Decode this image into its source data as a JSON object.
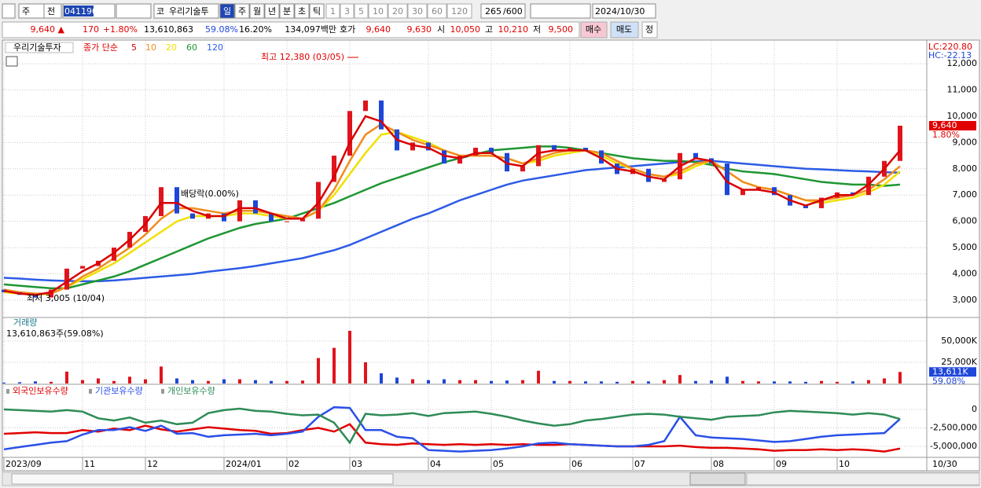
{
  "toolbar": {
    "type_label": "주",
    "prev_label": "전",
    "code": "041190",
    "market": "코",
    "name": "우리기술투",
    "periods": [
      "일",
      "주",
      "월",
      "년",
      "분",
      "초",
      "틱"
    ],
    "intervals": [
      "1",
      "3",
      "5",
      "10",
      "20",
      "30",
      "60",
      "120"
    ],
    "count": "265",
    "max_count": "/600",
    "date": "2024/10/30"
  },
  "quote": {
    "price": "9,640 ▲",
    "change": "170",
    "change_pct": "+1.80%",
    "volume": "13,610,863",
    "volume_ratio": "59.08%",
    "turnover": "16.20%",
    "amount": "134,097백만",
    "bid_ask_label": "호가",
    "ask": "9,640",
    "bid": "9,630",
    "open_label": "시",
    "open": "10,050",
    "high_label": "고",
    "high": "10,210",
    "low_label": "저",
    "low": "9,500",
    "buy": "매수",
    "sell": "매도",
    "correct": "정"
  },
  "chart_data": [
    {
      "type": "candlestick",
      "title": "우리기술투자",
      "legend_title": "종가 단순",
      "categories": [
        "2023/09",
        null,
        null,
        null,
        null,
        "11",
        null,
        null,
        null,
        "12",
        null,
        null,
        null,
        null,
        "2024/01",
        null,
        null,
        null,
        "02",
        null,
        null,
        null,
        "03",
        null,
        null,
        null,
        null,
        "04",
        null,
        null,
        null,
        "05",
        null,
        null,
        null,
        null,
        "06",
        null,
        null,
        null,
        "07",
        null,
        null,
        null,
        null,
        "08",
        null,
        null,
        null,
        "09",
        null,
        null,
        null,
        "10",
        null,
        null,
        null,
        null
      ],
      "open": [
        3400,
        3300,
        3200,
        3100,
        3400,
        4200,
        4300,
        4500,
        5000,
        5600,
        6200,
        7300,
        6300,
        6100,
        6300,
        6000,
        6800,
        6300,
        6000,
        6000,
        6100,
        7500,
        8500,
        10200,
        10600,
        9500,
        8700,
        9000,
        8700,
        8200,
        8500,
        8800,
        8600,
        7900,
        8100,
        8900,
        8700,
        8800,
        8700,
        8200,
        7800,
        8000,
        7500,
        7600,
        8600,
        8400,
        8200,
        7000,
        7200,
        7300,
        7000,
        6600,
        6500,
        6900,
        7100,
        7000,
        7700,
        8300
      ],
      "close": [
        3300,
        3200,
        3100,
        3400,
        4200,
        4300,
        4500,
        5000,
        5600,
        6200,
        7300,
        6300,
        6100,
        6300,
        6000,
        6800,
        6300,
        6000,
        6000,
        6100,
        7500,
        8500,
        10200,
        10600,
        9500,
        8700,
        9000,
        8700,
        8200,
        8500,
        8800,
        8600,
        7900,
        8100,
        8900,
        8700,
        8800,
        8700,
        8200,
        7800,
        8000,
        7500,
        7600,
        8600,
        8400,
        8200,
        7000,
        7200,
        7300,
        7000,
        6600,
        6500,
        6900,
        7100,
        7000,
        7700,
        8300,
        9640
      ],
      "up_color": "#e0141c",
      "down_color": "#1e46d8",
      "series": [
        {
          "name": "5",
          "color": "#d80000",
          "values": [
            3350,
            3250,
            3200,
            3300,
            3700,
            4100,
            4400,
            4800,
            5300,
            5900,
            6700,
            6700,
            6400,
            6200,
            6200,
            6500,
            6500,
            6300,
            6100,
            6100,
            6700,
            7700,
            9000,
            10000,
            9800,
            9100,
            8900,
            8800,
            8500,
            8400,
            8600,
            8600,
            8200,
            8100,
            8600,
            8700,
            8700,
            8700,
            8400,
            8000,
            7900,
            7700,
            7600,
            8100,
            8400,
            8300,
            7500,
            7200,
            7200,
            7100,
            6800,
            6600,
            6800,
            7000,
            7000,
            7400,
            8000,
            8700
          ]
        },
        {
          "name": "10",
          "color": "#f08c1e",
          "values": [
            3400,
            3300,
            3250,
            3250,
            3500,
            3900,
            4200,
            4600,
            5000,
            5500,
            6100,
            6500,
            6500,
            6400,
            6300,
            6400,
            6400,
            6300,
            6200,
            6100,
            6400,
            7200,
            8300,
            9300,
            9700,
            9400,
            9100,
            8900,
            8700,
            8500,
            8500,
            8500,
            8400,
            8200,
            8400,
            8600,
            8700,
            8700,
            8600,
            8300,
            8000,
            7800,
            7700,
            7900,
            8200,
            8300,
            7900,
            7500,
            7300,
            7200,
            7000,
            6800,
            6800,
            6900,
            7000,
            7200,
            7600,
            8100
          ]
        },
        {
          "name": "20",
          "color": "#f0e000",
          "values": [
            3300,
            3250,
            3200,
            3250,
            3500,
            3800,
            4100,
            4400,
            4800,
            5200,
            5600,
            6000,
            6200,
            6200,
            6200,
            6300,
            6300,
            6200,
            6100,
            6100,
            6400,
            7000,
            7800,
            8600,
            9300,
            9400,
            9200,
            9000,
            8700,
            8500,
            8500,
            8500,
            8400,
            8200,
            8300,
            8500,
            8600,
            8700,
            8500,
            8200,
            8000,
            7800,
            7700,
            7800,
            8100,
            8300,
            7900,
            7500,
            7300,
            7200,
            7000,
            6800,
            6700,
            6800,
            6900,
            7100,
            7400,
            7900
          ]
        },
        {
          "name": "60",
          "color": "#1e9632",
          "values": [
            3600,
            3550,
            3500,
            3450,
            3450,
            3600,
            3750,
            3900,
            4100,
            4350,
            4600,
            4850,
            5100,
            5350,
            5550,
            5750,
            5900,
            6000,
            6100,
            6300,
            6500,
            6700,
            6950,
            7200,
            7450,
            7650,
            7850,
            8050,
            8250,
            8400,
            8550,
            8700,
            8750,
            8800,
            8850,
            8850,
            8800,
            8700,
            8600,
            8500,
            8400,
            8350,
            8300,
            8300,
            8250,
            8150,
            8000,
            7900,
            7850,
            7800,
            7700,
            7600,
            7500,
            7450,
            7400,
            7400,
            7350,
            7400
          ]
        },
        {
          "name": "120",
          "color": "#2d5be6",
          "values": [
            3850,
            3820,
            3780,
            3750,
            3730,
            3720,
            3720,
            3750,
            3800,
            3850,
            3900,
            3950,
            4000,
            4080,
            4150,
            4220,
            4300,
            4400,
            4500,
            4600,
            4750,
            4900,
            5100,
            5350,
            5600,
            5850,
            6100,
            6300,
            6550,
            6800,
            7000,
            7200,
            7400,
            7550,
            7650,
            7750,
            7850,
            7950,
            8000,
            8050,
            8100,
            8150,
            8200,
            8250,
            8280,
            8300,
            8250,
            8200,
            8150,
            8100,
            8050,
            8000,
            7980,
            7950,
            7920,
            7900,
            7870,
            7850
          ]
        }
      ],
      "ylim": [
        2370,
        12870
      ],
      "yticks": [
        {
          "value": 3000,
          "label": "3,000"
        },
        {
          "value": 4000,
          "label": "4,000"
        },
        {
          "value": 5000,
          "label": "5,000"
        },
        {
          "value": 6000,
          "label": "6,000"
        },
        {
          "value": 7000,
          "label": "7,000"
        },
        {
          "value": 8000,
          "label": "8,000"
        },
        {
          "value": 9000,
          "label": "9,000"
        },
        {
          "value": 10000,
          "label": "10,000"
        },
        {
          "value": 11000,
          "label": "11,000"
        },
        {
          "value": 12000,
          "label": "12,000"
        }
      ],
      "grid": true,
      "annotations": {
        "high": "최고 12,380 (03/05)",
        "low": "최저 3,005 (10/04)",
        "dividend": "배당락(0.00%)"
      },
      "lc": "LC:220.80",
      "hc": "HC:-22.13",
      "last_tag": "9,640",
      "last_change": "1.80%"
    },
    {
      "type": "bar",
      "title": "거래량",
      "subtitle": "13,610,863주(59.08%)",
      "values": [
        1000,
        1500,
        2500,
        2000,
        14000,
        4000,
        6000,
        3000,
        8000,
        5000,
        20000,
        6000,
        4000,
        3000,
        5000,
        5000,
        4000,
        3000,
        3000,
        3500,
        30000,
        42000,
        62000,
        25000,
        12000,
        7000,
        5000,
        4000,
        5000,
        4000,
        4000,
        3000,
        3500,
        4000,
        15000,
        3000,
        3000,
        2500,
        2500,
        2000,
        3000,
        2500,
        4000,
        10000,
        3000,
        3500,
        8000,
        3000,
        2500,
        2500,
        2500,
        2000,
        3000,
        2000,
        2500,
        4000,
        6000,
        13611
      ],
      "ylim": [
        0,
        76850
      ],
      "yticks": [
        {
          "value": 25000,
          "label": "25,000K"
        },
        {
          "value": 50000,
          "label": "50,000K"
        }
      ],
      "grid": true,
      "last_tag": "13,611K",
      "last_pct": "59.08%"
    },
    {
      "type": "line",
      "series": [
        {
          "name": "외국인보유수량",
          "color": "#e00000",
          "values": [
            -3300000,
            -3200000,
            -3100000,
            -3200000,
            -3200000,
            -2800000,
            -3000000,
            -2600000,
            -2800000,
            -2200000,
            -2700000,
            -3000000,
            -2700000,
            -2400000,
            -2600000,
            -2800000,
            -2900000,
            -3300000,
            -3200000,
            -2800000,
            -2500000,
            -3000000,
            -2000000,
            -4500000,
            -4700000,
            -4800000,
            -4600000,
            -4700000,
            -4800000,
            -4700000,
            -4800000,
            -4700000,
            -4800000,
            -4700000,
            -4800000,
            -4800000,
            -4700000,
            -4800000,
            -4900000,
            -5000000,
            -5000000,
            -5000000,
            -5000000,
            -4900000,
            -5100000,
            -5200000,
            -5200000,
            -5300000,
            -5400000,
            -5600000,
            -5500000,
            -5500000,
            -5400000,
            -5500000,
            -5400000,
            -5500000,
            -5700000,
            -5300000
          ]
        },
        {
          "name": "기관보유수량",
          "color": "#2a50e8",
          "values": [
            -5400000,
            -5100000,
            -4800000,
            -4500000,
            -4300000,
            -3400000,
            -2800000,
            -2800000,
            -2400000,
            -2900000,
            -2200000,
            -3300000,
            -3200000,
            -3700000,
            -3500000,
            -3400000,
            -3300000,
            -3500000,
            -3300000,
            -3000000,
            -1000000,
            300000,
            200000,
            -2800000,
            -2800000,
            -3700000,
            -3900000,
            -5500000,
            -5600000,
            -5700000,
            -5600000,
            -5500000,
            -5300000,
            -5000000,
            -4600000,
            -4500000,
            -4700000,
            -4800000,
            -4900000,
            -5000000,
            -5000000,
            -4800000,
            -4300000,
            -1000000,
            -3500000,
            -3800000,
            -3900000,
            -4000000,
            -4200000,
            -4400000,
            -4300000,
            -4000000,
            -3700000,
            -3500000,
            -3400000,
            -3300000,
            -3200000,
            -1300000
          ]
        },
        {
          "name": "개인보유수량",
          "color": "#2e8b57",
          "values": [
            0,
            -100000,
            -200000,
            -300000,
            -100000,
            -300000,
            -1200000,
            -1500000,
            -1100000,
            -1800000,
            -1500000,
            -2000000,
            -1800000,
            -500000,
            -100000,
            100000,
            -200000,
            -300000,
            -600000,
            -800000,
            -700000,
            -1800000,
            -4500000,
            -600000,
            -800000,
            -700000,
            -500000,
            -900000,
            -500000,
            -400000,
            -300000,
            -600000,
            -1000000,
            -1500000,
            -1900000,
            -2200000,
            -2000000,
            -1500000,
            -1300000,
            -1000000,
            -700000,
            -600000,
            -700000,
            -1000000,
            -1200000,
            -1400000,
            -1000000,
            -900000,
            -800000,
            -400000,
            -200000,
            -300000,
            -400000,
            -500000,
            -700000,
            -500000,
            -700000,
            -1300000
          ]
        }
      ],
      "ylim": [
        -6490000,
        3190000
      ],
      "yticks": [
        0,
        {
          "value": -2500000,
          "label": "-2,500,000"
        },
        {
          "value": -5000000,
          "label": "-5,000,000"
        }
      ],
      "grid": true
    }
  ],
  "x_end_label": "10/30"
}
